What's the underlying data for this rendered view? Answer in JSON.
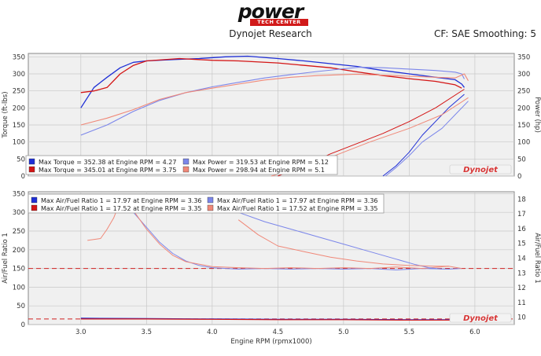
{
  "header": {
    "logo_text": "power",
    "logo_subtext": "TECH CENTER",
    "title": "Dynojet Research",
    "settings": "CF: SAE Smoothing: 5"
  },
  "watermark": "Dynojet",
  "colors": {
    "dark_blue": "#1f2fd6",
    "light_blue": "#7b86ea",
    "dark_red": "#d41515",
    "light_red": "#f08878",
    "afr_target_line": "#d02020",
    "plot_bg": "#f0f0f0",
    "grid": "#c8c8c8"
  },
  "chart_data": [
    {
      "type": "line",
      "title": "",
      "xlabel": "",
      "ylabel": "Torque (ft-lbs)",
      "y2label": "Power (hp)",
      "xlim": [
        2.6,
        6.3
      ],
      "ylim": [
        0,
        360
      ],
      "y2lim": [
        0,
        360
      ],
      "x_ticks": [
        3.0,
        3.5,
        4.0,
        4.5,
        5.0,
        5.5,
        6.0
      ],
      "y_ticks": [
        0,
        50,
        100,
        150,
        200,
        250,
        300,
        350
      ],
      "y2_ticks": [
        0,
        50,
        100,
        150,
        200,
        250,
        300,
        350
      ],
      "grid": true,
      "legend_position": "bottom-left",
      "legend": [
        {
          "label": "Max Torque = 352.38 at Engine RPM = 4.27",
          "color": "#1f2fd6"
        },
        {
          "label": "Max Torque = 345.01 at Engine RPM = 3.75",
          "color": "#d41515"
        },
        {
          "label": "Max Power = 319.53 at Engine RPM = 5.12",
          "color": "#7b86ea"
        },
        {
          "label": "Max Power = 298.94 at Engine RPM = 5.1",
          "color": "#f08878"
        }
      ],
      "series": [
        {
          "color": "#1f2fd6",
          "width": 1.3,
          "x": [
            3.0,
            3.1,
            3.2,
            3.3,
            3.4,
            3.5,
            3.7,
            3.9,
            4.1,
            4.27,
            4.5,
            4.7,
            4.9,
            5.1,
            5.3,
            5.5,
            5.7,
            5.85,
            5.9,
            5.92
          ],
          "y": [
            200,
            260,
            290,
            318,
            334,
            338,
            342,
            345,
            350,
            352,
            345,
            338,
            330,
            322,
            310,
            300,
            290,
            283,
            270,
            260
          ]
        },
        {
          "color": "#d41515",
          "width": 1.3,
          "x": [
            3.0,
            3.1,
            3.15,
            3.2,
            3.3,
            3.4,
            3.5,
            3.75,
            4.0,
            4.2,
            4.5,
            4.7,
            4.9,
            5.1,
            5.3,
            5.5,
            5.7,
            5.85,
            5.9
          ],
          "y": [
            245,
            250,
            255,
            260,
            300,
            325,
            338,
            345,
            340,
            338,
            332,
            325,
            318,
            306,
            295,
            286,
            278,
            268,
            258
          ]
        },
        {
          "color": "#7b86ea",
          "width": 1.1,
          "x": [
            3.0,
            3.2,
            3.4,
            3.6,
            3.8,
            4.0,
            4.2,
            4.4,
            4.6,
            4.8,
            5.0,
            5.12,
            5.3,
            5.5,
            5.7,
            5.85,
            5.9,
            5.92
          ],
          "y": [
            120,
            150,
            190,
            222,
            245,
            262,
            275,
            288,
            298,
            307,
            315,
            319.5,
            318,
            314,
            310,
            305,
            300,
            285
          ]
        },
        {
          "color": "#f08878",
          "width": 1.1,
          "x": [
            3.0,
            3.2,
            3.4,
            3.6,
            3.8,
            4.0,
            4.2,
            4.4,
            4.6,
            4.8,
            5.0,
            5.1,
            5.3,
            5.5,
            5.7,
            5.85,
            5.92,
            5.95
          ],
          "y": [
            150,
            170,
            195,
            225,
            245,
            258,
            270,
            282,
            290,
            295,
            298,
            299,
            296,
            293,
            290,
            288,
            300,
            280
          ]
        },
        {
          "color": "#1f2fd6",
          "width": 1.0,
          "x": [
            5.92,
            5.8,
            5.7,
            5.6,
            5.5,
            5.4,
            5.3
          ],
          "y": [
            240,
            200,
            160,
            120,
            70,
            30,
            0
          ]
        },
        {
          "color": "#7b86ea",
          "width": 1.0,
          "x": [
            5.95,
            5.85,
            5.75,
            5.6,
            5.5,
            5.4,
            5.32
          ],
          "y": [
            220,
            180,
            140,
            100,
            60,
            25,
            0
          ]
        },
        {
          "color": "#d41515",
          "width": 1.0,
          "x": [
            5.92,
            5.7,
            5.5,
            5.3,
            5.1,
            4.9,
            4.7,
            4.5
          ],
          "y": [
            255,
            200,
            160,
            125,
            95,
            65,
            30,
            0
          ]
        },
        {
          "color": "#f08878",
          "width": 1.0,
          "x": [
            5.95,
            5.75,
            5.5,
            5.2,
            5.0,
            4.8,
            4.6,
            4.45
          ],
          "y": [
            230,
            180,
            140,
            100,
            70,
            40,
            15,
            0
          ]
        }
      ]
    },
    {
      "type": "line",
      "title": "",
      "xlabel": "Engine RPM (rpmx1000)",
      "ylabel": "Air/Fuel Ratio 1",
      "y2label": "Air/Fuel Ratio 1",
      "xlim": [
        2.6,
        6.3
      ],
      "ylim": [
        0,
        355
      ],
      "y2lim": [
        9.5,
        18.5
      ],
      "x_ticks": [
        3.0,
        3.5,
        4.0,
        4.5,
        5.0,
        5.5,
        6.0
      ],
      "y_ticks": [
        0,
        50,
        100,
        150,
        200,
        250,
        300,
        350
      ],
      "y2_ticks": [
        10,
        11,
        12,
        13,
        14,
        15,
        16,
        17,
        18
      ],
      "grid": true,
      "legend_position": "top-left",
      "reference_lines_y": [
        150,
        15
      ],
      "legend": [
        {
          "label": "Max Air/Fuel Ratio 1 = 17.97 at Engine RPM = 3.36",
          "color": "#1f2fd6"
        },
        {
          "label": "Max Air/Fuel Ratio 1 = 17.52 at Engine RPM = 3.35",
          "color": "#d41515"
        },
        {
          "label": "Max Air/Fuel Ratio 1 = 17.97 at Engine RPM = 3.36",
          "color": "#7b86ea"
        },
        {
          "label": "Max Air/Fuel Ratio 1 = 17.52 at Engine RPM = 3.35",
          "color": "#f08878"
        }
      ],
      "series": [
        {
          "color": "#7b86ea",
          "width": 1.0,
          "x": [
            3.3,
            3.4,
            3.5,
            3.6,
            3.7,
            3.8,
            3.9,
            4.0,
            4.2,
            4.4,
            4.6,
            4.8,
            5.0,
            5.2,
            5.4,
            5.6,
            5.8,
            5.9
          ],
          "y": [
            330,
            300,
            260,
            220,
            190,
            170,
            158,
            152,
            148,
            150,
            148,
            150,
            148,
            150,
            146,
            150,
            148,
            150
          ]
        },
        {
          "color": "#f08878",
          "width": 1.0,
          "x": [
            3.05,
            3.15,
            3.2,
            3.25,
            3.3,
            3.4,
            3.5,
            3.6,
            3.7,
            3.8,
            4.0,
            4.2,
            4.4,
            4.6,
            4.8,
            5.0,
            5.2,
            5.4,
            5.6,
            5.8,
            5.9
          ],
          "y": [
            225,
            230,
            255,
            285,
            330,
            305,
            255,
            215,
            185,
            168,
            155,
            152,
            150,
            152,
            150,
            152,
            150,
            154,
            150,
            156,
            150
          ]
        },
        {
          "color": "#7b86ea",
          "width": 1.0,
          "x": [
            4.2,
            4.4,
            4.6,
            4.8,
            5.0,
            5.2,
            5.4,
            5.55,
            5.65,
            5.75
          ],
          "y": [
            300,
            275,
            255,
            235,
            215,
            195,
            175,
            160,
            152,
            148
          ]
        },
        {
          "color": "#f08878",
          "width": 1.0,
          "x": [
            4.2,
            4.35,
            4.5,
            4.7,
            4.9,
            5.1,
            5.3,
            5.5,
            5.7,
            5.8
          ],
          "y": [
            280,
            240,
            210,
            195,
            180,
            170,
            162,
            158,
            156,
            156
          ]
        },
        {
          "color": "#1f2fd6",
          "width": 1.2,
          "x": [
            3.0,
            3.5,
            4.0,
            4.5,
            5.0,
            5.5,
            5.9
          ],
          "y": [
            17,
            16,
            15,
            14,
            14,
            13,
            13
          ]
        },
        {
          "color": "#d41515",
          "width": 1.2,
          "x": [
            3.0,
            3.5,
            4.0,
            4.5,
            5.0,
            5.5,
            5.9
          ],
          "y": [
            15,
            15,
            14,
            13,
            13,
            12,
            12
          ]
        }
      ]
    }
  ]
}
